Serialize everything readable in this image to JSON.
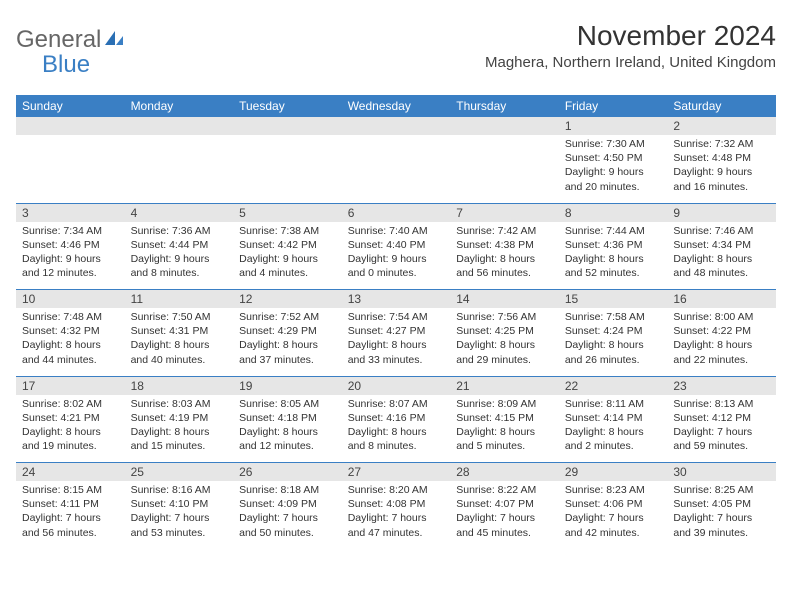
{
  "logo": {
    "text1": "General",
    "text2": "Blue"
  },
  "title": "November 2024",
  "location": "Maghera, Northern Ireland, United Kingdom",
  "colors": {
    "header_bg": "#3a7fc4",
    "header_text": "#ffffff",
    "daynum_bg": "#e6e6e6",
    "row_border": "#3a7fc4",
    "text": "#333333",
    "background": "#ffffff"
  },
  "weekdays": [
    "Sunday",
    "Monday",
    "Tuesday",
    "Wednesday",
    "Thursday",
    "Friday",
    "Saturday"
  ],
  "weeks": [
    [
      {
        "day": "",
        "sunrise": "",
        "sunset": "",
        "daylight": ""
      },
      {
        "day": "",
        "sunrise": "",
        "sunset": "",
        "daylight": ""
      },
      {
        "day": "",
        "sunrise": "",
        "sunset": "",
        "daylight": ""
      },
      {
        "day": "",
        "sunrise": "",
        "sunset": "",
        "daylight": ""
      },
      {
        "day": "",
        "sunrise": "",
        "sunset": "",
        "daylight": ""
      },
      {
        "day": "1",
        "sunrise": "Sunrise: 7:30 AM",
        "sunset": "Sunset: 4:50 PM",
        "daylight": "Daylight: 9 hours and 20 minutes."
      },
      {
        "day": "2",
        "sunrise": "Sunrise: 7:32 AM",
        "sunset": "Sunset: 4:48 PM",
        "daylight": "Daylight: 9 hours and 16 minutes."
      }
    ],
    [
      {
        "day": "3",
        "sunrise": "Sunrise: 7:34 AM",
        "sunset": "Sunset: 4:46 PM",
        "daylight": "Daylight: 9 hours and 12 minutes."
      },
      {
        "day": "4",
        "sunrise": "Sunrise: 7:36 AM",
        "sunset": "Sunset: 4:44 PM",
        "daylight": "Daylight: 9 hours and 8 minutes."
      },
      {
        "day": "5",
        "sunrise": "Sunrise: 7:38 AM",
        "sunset": "Sunset: 4:42 PM",
        "daylight": "Daylight: 9 hours and 4 minutes."
      },
      {
        "day": "6",
        "sunrise": "Sunrise: 7:40 AM",
        "sunset": "Sunset: 4:40 PM",
        "daylight": "Daylight: 9 hours and 0 minutes."
      },
      {
        "day": "7",
        "sunrise": "Sunrise: 7:42 AM",
        "sunset": "Sunset: 4:38 PM",
        "daylight": "Daylight: 8 hours and 56 minutes."
      },
      {
        "day": "8",
        "sunrise": "Sunrise: 7:44 AM",
        "sunset": "Sunset: 4:36 PM",
        "daylight": "Daylight: 8 hours and 52 minutes."
      },
      {
        "day": "9",
        "sunrise": "Sunrise: 7:46 AM",
        "sunset": "Sunset: 4:34 PM",
        "daylight": "Daylight: 8 hours and 48 minutes."
      }
    ],
    [
      {
        "day": "10",
        "sunrise": "Sunrise: 7:48 AM",
        "sunset": "Sunset: 4:32 PM",
        "daylight": "Daylight: 8 hours and 44 minutes."
      },
      {
        "day": "11",
        "sunrise": "Sunrise: 7:50 AM",
        "sunset": "Sunset: 4:31 PM",
        "daylight": "Daylight: 8 hours and 40 minutes."
      },
      {
        "day": "12",
        "sunrise": "Sunrise: 7:52 AM",
        "sunset": "Sunset: 4:29 PM",
        "daylight": "Daylight: 8 hours and 37 minutes."
      },
      {
        "day": "13",
        "sunrise": "Sunrise: 7:54 AM",
        "sunset": "Sunset: 4:27 PM",
        "daylight": "Daylight: 8 hours and 33 minutes."
      },
      {
        "day": "14",
        "sunrise": "Sunrise: 7:56 AM",
        "sunset": "Sunset: 4:25 PM",
        "daylight": "Daylight: 8 hours and 29 minutes."
      },
      {
        "day": "15",
        "sunrise": "Sunrise: 7:58 AM",
        "sunset": "Sunset: 4:24 PM",
        "daylight": "Daylight: 8 hours and 26 minutes."
      },
      {
        "day": "16",
        "sunrise": "Sunrise: 8:00 AM",
        "sunset": "Sunset: 4:22 PM",
        "daylight": "Daylight: 8 hours and 22 minutes."
      }
    ],
    [
      {
        "day": "17",
        "sunrise": "Sunrise: 8:02 AM",
        "sunset": "Sunset: 4:21 PM",
        "daylight": "Daylight: 8 hours and 19 minutes."
      },
      {
        "day": "18",
        "sunrise": "Sunrise: 8:03 AM",
        "sunset": "Sunset: 4:19 PM",
        "daylight": "Daylight: 8 hours and 15 minutes."
      },
      {
        "day": "19",
        "sunrise": "Sunrise: 8:05 AM",
        "sunset": "Sunset: 4:18 PM",
        "daylight": "Daylight: 8 hours and 12 minutes."
      },
      {
        "day": "20",
        "sunrise": "Sunrise: 8:07 AM",
        "sunset": "Sunset: 4:16 PM",
        "daylight": "Daylight: 8 hours and 8 minutes."
      },
      {
        "day": "21",
        "sunrise": "Sunrise: 8:09 AM",
        "sunset": "Sunset: 4:15 PM",
        "daylight": "Daylight: 8 hours and 5 minutes."
      },
      {
        "day": "22",
        "sunrise": "Sunrise: 8:11 AM",
        "sunset": "Sunset: 4:14 PM",
        "daylight": "Daylight: 8 hours and 2 minutes."
      },
      {
        "day": "23",
        "sunrise": "Sunrise: 8:13 AM",
        "sunset": "Sunset: 4:12 PM",
        "daylight": "Daylight: 7 hours and 59 minutes."
      }
    ],
    [
      {
        "day": "24",
        "sunrise": "Sunrise: 8:15 AM",
        "sunset": "Sunset: 4:11 PM",
        "daylight": "Daylight: 7 hours and 56 minutes."
      },
      {
        "day": "25",
        "sunrise": "Sunrise: 8:16 AM",
        "sunset": "Sunset: 4:10 PM",
        "daylight": "Daylight: 7 hours and 53 minutes."
      },
      {
        "day": "26",
        "sunrise": "Sunrise: 8:18 AM",
        "sunset": "Sunset: 4:09 PM",
        "daylight": "Daylight: 7 hours and 50 minutes."
      },
      {
        "day": "27",
        "sunrise": "Sunrise: 8:20 AM",
        "sunset": "Sunset: 4:08 PM",
        "daylight": "Daylight: 7 hours and 47 minutes."
      },
      {
        "day": "28",
        "sunrise": "Sunrise: 8:22 AM",
        "sunset": "Sunset: 4:07 PM",
        "daylight": "Daylight: 7 hours and 45 minutes."
      },
      {
        "day": "29",
        "sunrise": "Sunrise: 8:23 AM",
        "sunset": "Sunset: 4:06 PM",
        "daylight": "Daylight: 7 hours and 42 minutes."
      },
      {
        "day": "30",
        "sunrise": "Sunrise: 8:25 AM",
        "sunset": "Sunset: 4:05 PM",
        "daylight": "Daylight: 7 hours and 39 minutes."
      }
    ]
  ]
}
